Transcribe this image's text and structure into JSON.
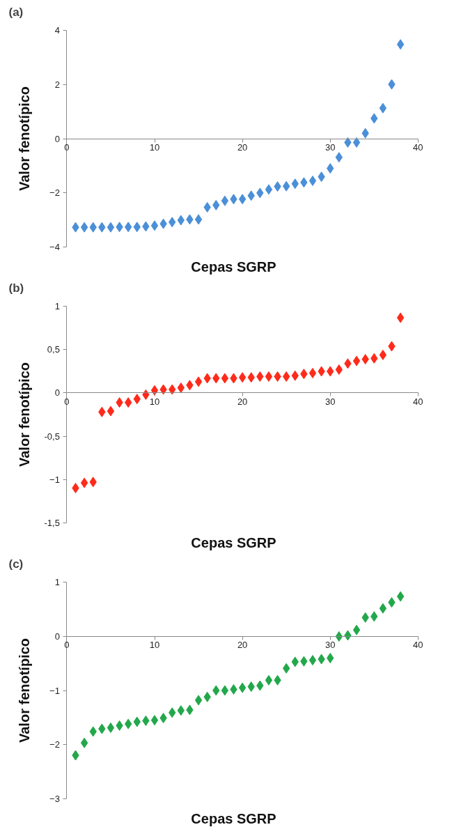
{
  "chart_data": [
    {
      "type": "scatter",
      "title": "(a)",
      "xlabel": "Cepas SGRP",
      "ylabel": "Valor fenotípico",
      "marker": "diamond",
      "grid": false,
      "xlim": [
        0,
        40
      ],
      "xticks": [
        0,
        10,
        20,
        30,
        40
      ],
      "ylim": [
        -4,
        4
      ],
      "yticks": [
        -4,
        -2,
        0,
        2,
        4
      ],
      "series": [
        {
          "color": "#4a8fd8",
          "x": [
            1,
            2,
            3,
            4,
            5,
            6,
            7,
            8,
            9,
            10,
            11,
            12,
            13,
            14,
            15,
            16,
            17,
            18,
            19,
            20,
            21,
            22,
            23,
            24,
            25,
            26,
            27,
            28,
            29,
            30,
            31,
            32,
            33,
            34,
            35,
            36,
            37,
            38
          ],
          "values": [
            -3.28,
            -3.28,
            -3.28,
            -3.28,
            -3.28,
            -3.27,
            -3.27,
            -3.27,
            -3.25,
            -3.22,
            -3.15,
            -3.09,
            -3.02,
            -2.99,
            -2.99,
            -2.54,
            -2.46,
            -2.3,
            -2.24,
            -2.24,
            -2.11,
            -2.01,
            -1.88,
            -1.77,
            -1.76,
            -1.67,
            -1.62,
            -1.56,
            -1.41,
            -1.1,
            -0.69,
            -0.14,
            -0.14,
            0.2,
            0.75,
            1.13,
            2.01,
            3.49
          ]
        }
      ]
    },
    {
      "type": "scatter",
      "title": "(b)",
      "xlabel": "Cepas SGRP",
      "ylabel": "Valor fenotípico",
      "marker": "diamond",
      "grid": false,
      "xlim": [
        0,
        40
      ],
      "xticks": [
        0,
        10,
        20,
        30,
        40
      ],
      "ylim": [
        -1.5,
        1
      ],
      "yticks": [
        {
          "value": -1.5,
          "label": "-1,5"
        },
        -1,
        {
          "value": -0.5,
          "label": "-0,5"
        },
        0,
        {
          "value": 0.5,
          "label": "0,5"
        },
        1
      ],
      "series": [
        {
          "color": "#ff2a1a",
          "x": [
            1,
            2,
            3,
            4,
            5,
            6,
            7,
            8,
            9,
            10,
            11,
            12,
            13,
            14,
            15,
            16,
            17,
            18,
            19,
            20,
            21,
            22,
            23,
            24,
            25,
            26,
            27,
            28,
            29,
            30,
            31,
            32,
            33,
            34,
            35,
            36,
            37,
            38
          ],
          "values": [
            -1.1,
            -1.04,
            -1.03,
            -0.22,
            -0.21,
            -0.11,
            -0.11,
            -0.07,
            -0.02,
            0.03,
            0.04,
            0.04,
            0.06,
            0.09,
            0.13,
            0.17,
            0.17,
            0.17,
            0.17,
            0.18,
            0.18,
            0.19,
            0.19,
            0.19,
            0.19,
            0.2,
            0.22,
            0.23,
            0.25,
            0.25,
            0.27,
            0.34,
            0.37,
            0.39,
            0.4,
            0.44,
            0.54,
            0.87
          ]
        }
      ]
    },
    {
      "type": "scatter",
      "title": "(c)",
      "xlabel": "Cepas SGRP",
      "ylabel": "Valor fenotípico",
      "marker": "diamond",
      "grid": false,
      "xlim": [
        0,
        40
      ],
      "xticks": [
        0,
        10,
        20,
        30,
        40
      ],
      "ylim": [
        -3,
        1
      ],
      "yticks": [
        -3,
        -2,
        -1,
        0,
        1
      ],
      "series": [
        {
          "color": "#22a84a",
          "x": [
            1,
            2,
            3,
            4,
            5,
            6,
            7,
            8,
            9,
            10,
            11,
            12,
            13,
            14,
            15,
            16,
            17,
            18,
            19,
            20,
            21,
            22,
            23,
            24,
            25,
            26,
            27,
            28,
            29,
            30,
            31,
            32,
            33,
            34,
            35,
            36,
            37,
            38
          ],
          "values": [
            -2.2,
            -1.97,
            -1.76,
            -1.71,
            -1.69,
            -1.65,
            -1.62,
            -1.58,
            -1.56,
            -1.55,
            -1.51,
            -1.41,
            -1.37,
            -1.36,
            -1.18,
            -1.12,
            -1.0,
            -1.0,
            -0.98,
            -0.95,
            -0.93,
            -0.91,
            -0.81,
            -0.81,
            -0.59,
            -0.47,
            -0.46,
            -0.44,
            -0.42,
            -0.4,
            0.0,
            0.02,
            0.12,
            0.35,
            0.37,
            0.52,
            0.63,
            0.74
          ]
        }
      ]
    }
  ]
}
